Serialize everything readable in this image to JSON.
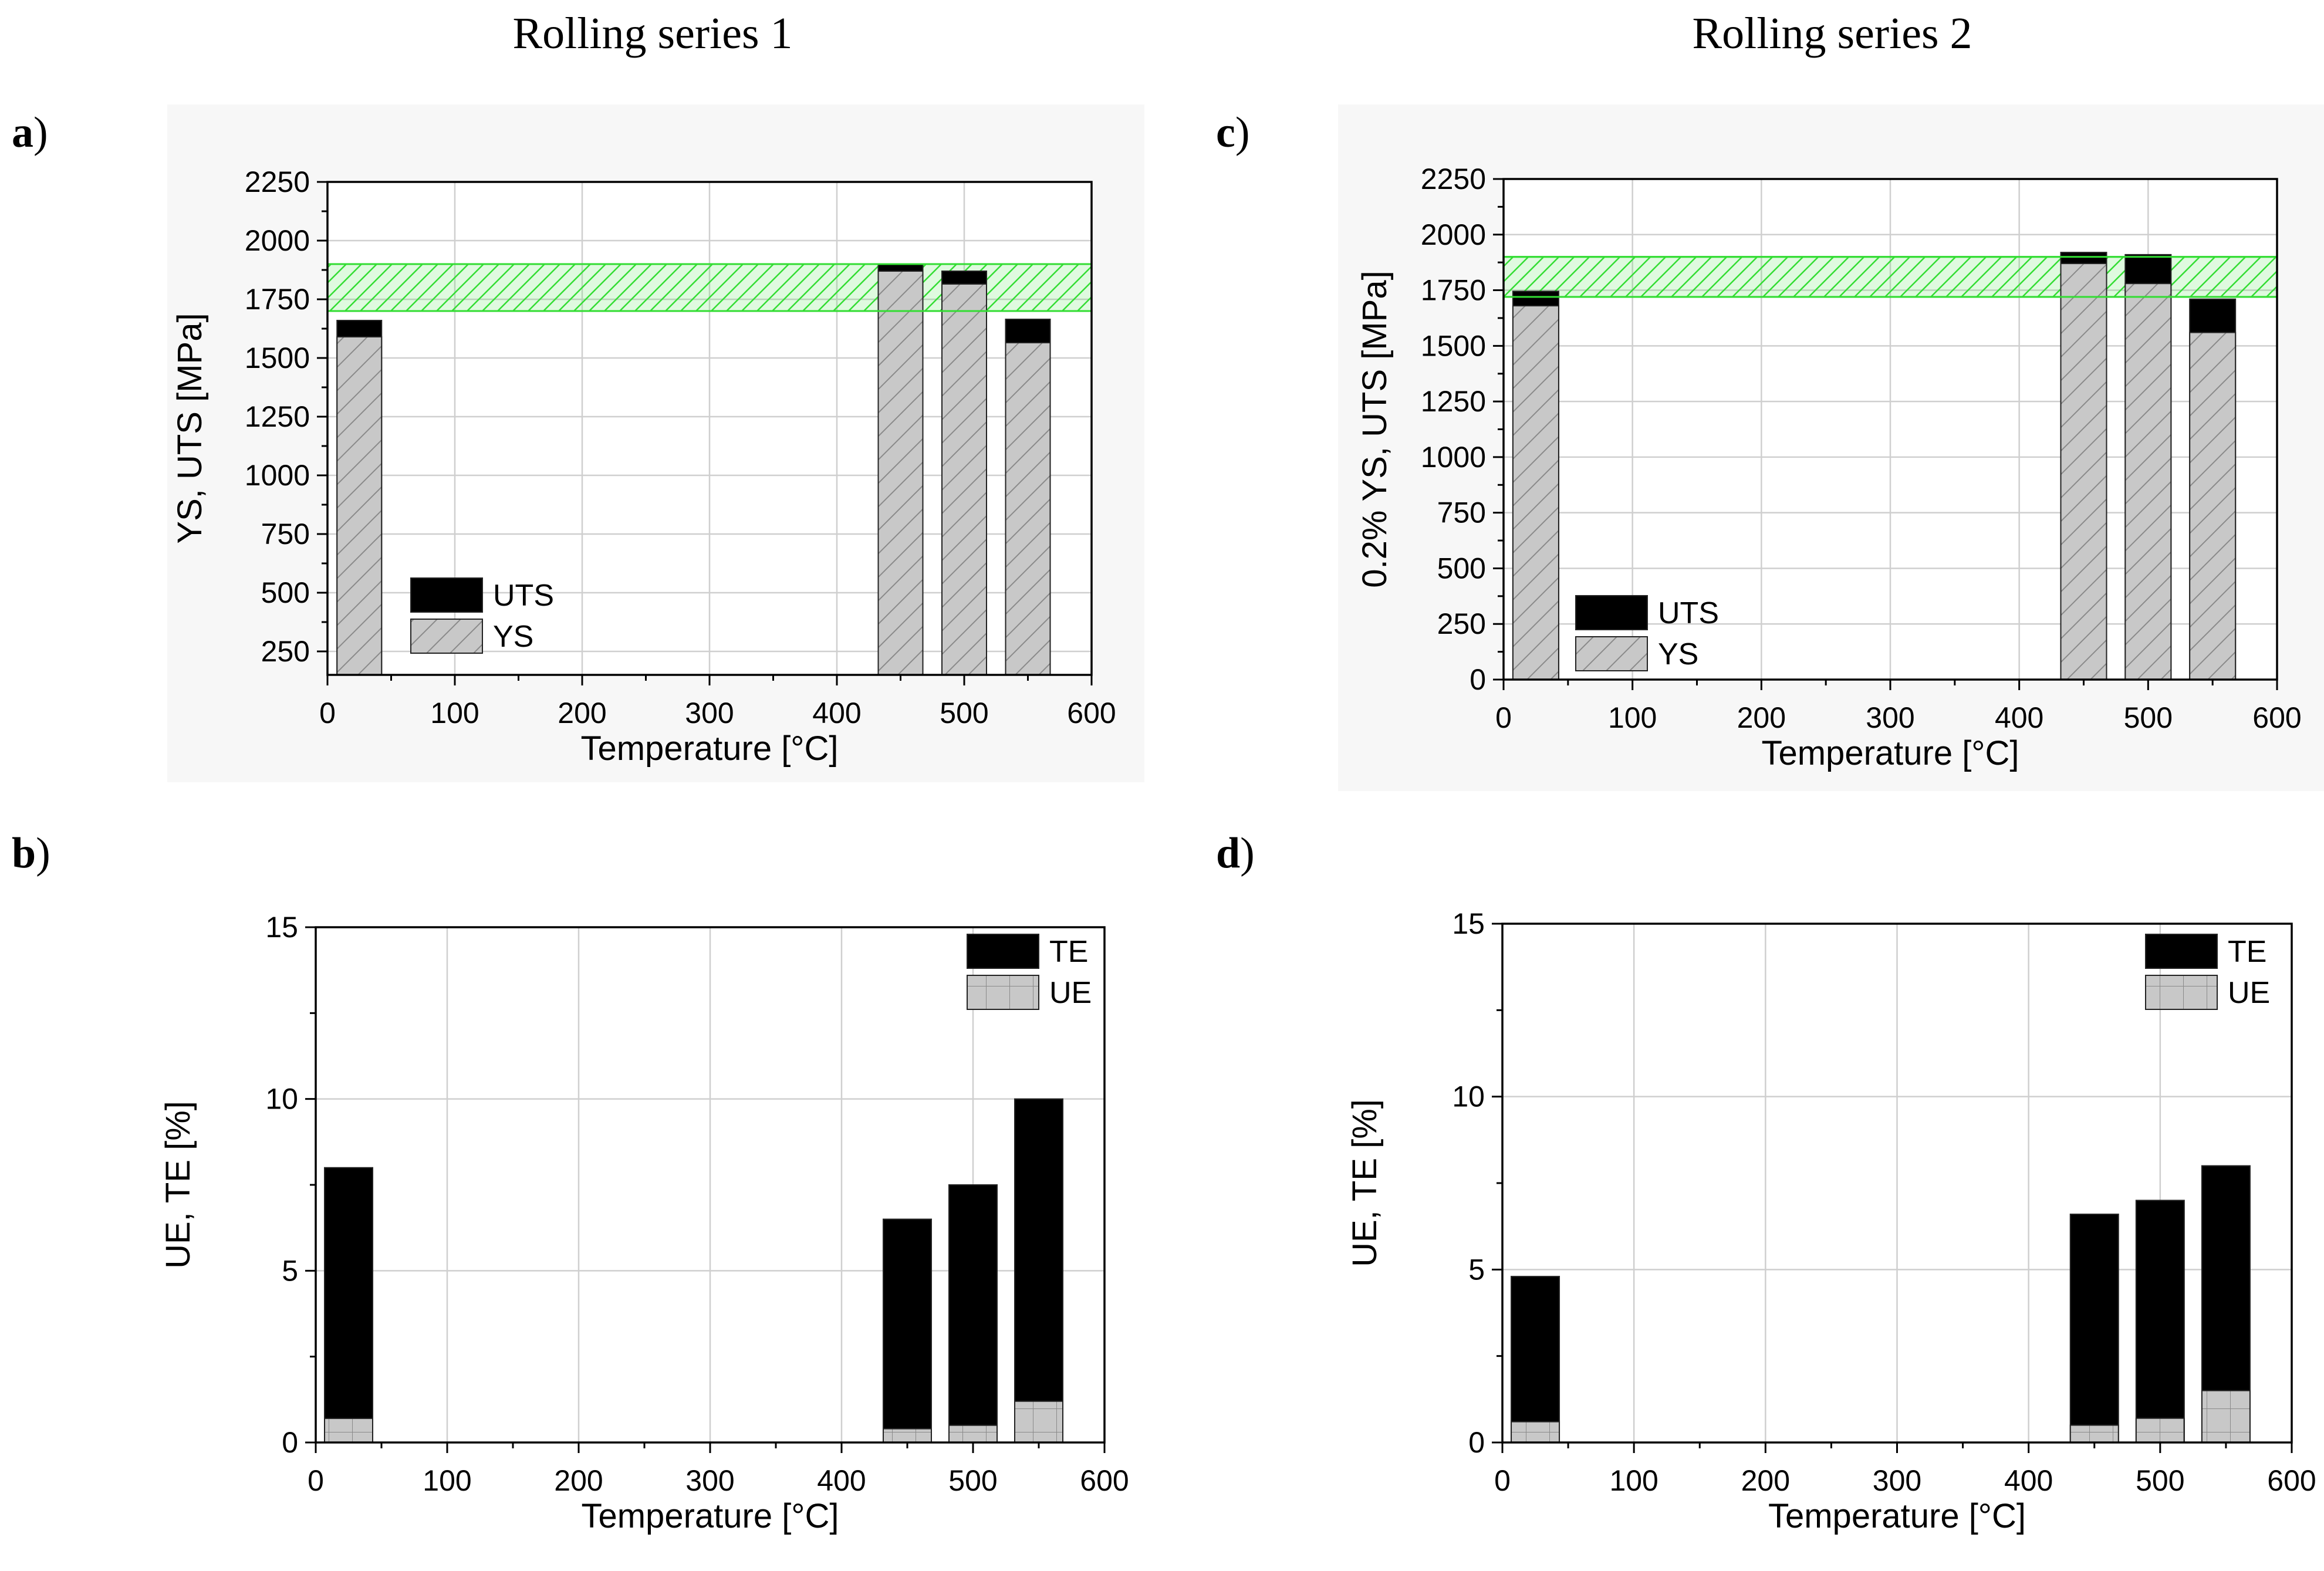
{
  "figure": {
    "column_titles": [
      "Rolling series 1",
      "Rolling series 2"
    ],
    "colors": {
      "uts": "#000000",
      "te": "#000000",
      "ys_fill": "#c8c8c8",
      "ue_fill": "#c8c8c8",
      "band": "#33dd33",
      "grid": "#cfcfcf",
      "panel_bg": "#f7f7f7"
    }
  },
  "chart_data": [
    {
      "id": "a",
      "panel_label": "a",
      "type": "bar",
      "subtype": "overlapping",
      "xlabel": "Temperature [°C]",
      "ylabel": "YS, UTS [MPa]",
      "xlim": [
        0,
        600
      ],
      "ylim": [
        150,
        2250
      ],
      "xticks": [
        0,
        100,
        200,
        300,
        400,
        500,
        600
      ],
      "yticks": [
        250,
        500,
        750,
        1000,
        1250,
        1500,
        1750,
        2000,
        2250
      ],
      "grid": true,
      "legend_position": "bottom-left",
      "categories": [
        25,
        450,
        500,
        550
      ],
      "series": [
        {
          "name": "UTS",
          "style": "solid",
          "values": [
            1660,
            1900,
            1870,
            1665
          ]
        },
        {
          "name": "YS",
          "style": "hatched",
          "values": [
            1590,
            1870,
            1815,
            1565
          ]
        }
      ],
      "band": {
        "y0": 1700,
        "y1": 1900,
        "x0": 0,
        "x1": 600
      }
    },
    {
      "id": "c",
      "panel_label": "c",
      "type": "bar",
      "subtype": "overlapping",
      "xlabel": "Temperature [°C]",
      "ylabel": "0.2% YS, UTS [MPa]",
      "xlim": [
        0,
        600
      ],
      "ylim": [
        0,
        2250
      ],
      "xticks": [
        0,
        100,
        200,
        300,
        400,
        500,
        600
      ],
      "yticks": [
        0,
        250,
        500,
        750,
        1000,
        1250,
        1500,
        1750,
        2000,
        2250
      ],
      "grid": true,
      "legend_position": "bottom-left",
      "categories": [
        25,
        450,
        500,
        550
      ],
      "series": [
        {
          "name": "UTS",
          "style": "solid",
          "values": [
            1745,
            1920,
            1910,
            1710
          ]
        },
        {
          "name": "YS",
          "style": "hatched",
          "values": [
            1680,
            1870,
            1780,
            1560
          ]
        }
      ],
      "band": {
        "y0": 1720,
        "y1": 1900,
        "x0": 0,
        "x1": 600
      }
    },
    {
      "id": "b",
      "panel_label": "b",
      "type": "bar",
      "subtype": "overlapping",
      "xlabel": "Temperature [°C]",
      "ylabel": "UE, TE [%]",
      "xlim": [
        0,
        600
      ],
      "ylim": [
        0,
        15
      ],
      "xticks": [
        0,
        100,
        200,
        300,
        400,
        500,
        600
      ],
      "yticks": [
        0,
        5,
        10,
        15
      ],
      "grid": true,
      "legend_position": "top-right",
      "categories": [
        25,
        450,
        500,
        550
      ],
      "series": [
        {
          "name": "TE",
          "style": "solid",
          "values": [
            8.0,
            6.5,
            7.5,
            10.0
          ]
        },
        {
          "name": "UE",
          "style": "grid",
          "values": [
            0.7,
            0.4,
            0.5,
            1.2
          ]
        }
      ]
    },
    {
      "id": "d",
      "panel_label": "d",
      "type": "bar",
      "subtype": "overlapping",
      "xlabel": "Temperature [°C]",
      "ylabel": "UE, TE [%]",
      "xlim": [
        0,
        600
      ],
      "ylim": [
        0,
        15
      ],
      "xticks": [
        0,
        100,
        200,
        300,
        400,
        500,
        600
      ],
      "yticks": [
        0,
        5,
        10,
        15
      ],
      "grid": true,
      "legend_position": "top-right",
      "categories": [
        25,
        450,
        500,
        550
      ],
      "series": [
        {
          "name": "TE",
          "style": "solid",
          "values": [
            4.8,
            6.6,
            7.0,
            8.0
          ]
        },
        {
          "name": "UE",
          "style": "grid",
          "values": [
            0.6,
            0.5,
            0.7,
            1.5
          ]
        }
      ]
    }
  ]
}
